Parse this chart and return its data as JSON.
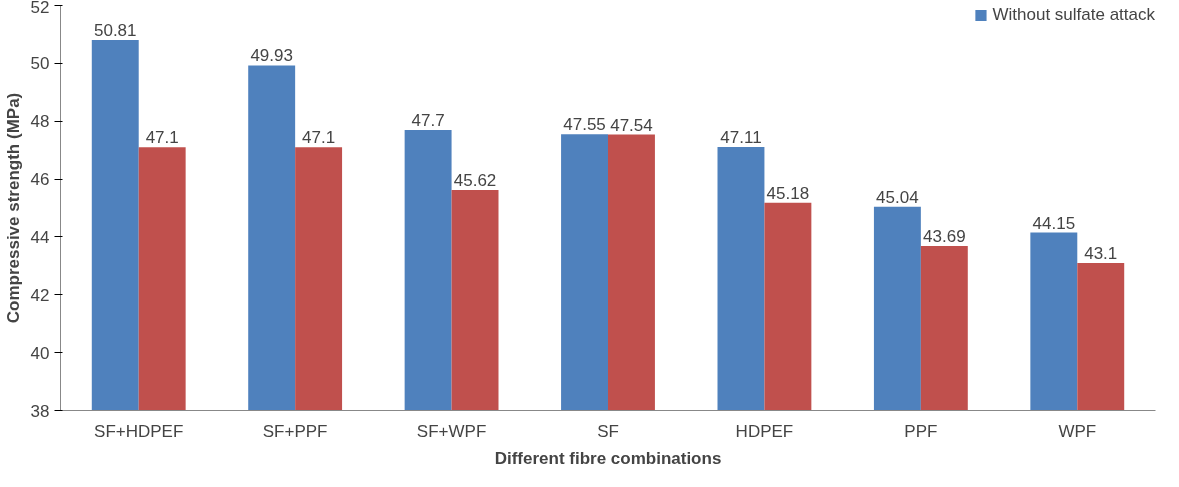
{
  "chart_data": {
    "type": "bar",
    "xlabel": "Different fibre combinations",
    "ylabel": "Compressive strength (MPa)",
    "categories": [
      "SF+HDPEF",
      "SF+PPF",
      "SF+WPF",
      "SF",
      "HDPEF",
      "PPF",
      "WPF"
    ],
    "series": [
      {
        "name": "Without sulfate attack",
        "color": "#4f81bd",
        "values": [
          50.81,
          49.93,
          47.7,
          47.55,
          47.11,
          45.04,
          44.15
        ]
      },
      {
        "color": "#c0504d",
        "values": [
          47.1,
          47.1,
          45.62,
          47.54,
          45.18,
          43.69,
          43.1
        ]
      }
    ],
    "ylim": [
      38,
      52
    ],
    "yticks": [
      38,
      40,
      42,
      44,
      46,
      48,
      50,
      52
    ],
    "data_labels": true,
    "legend": "top right"
  }
}
